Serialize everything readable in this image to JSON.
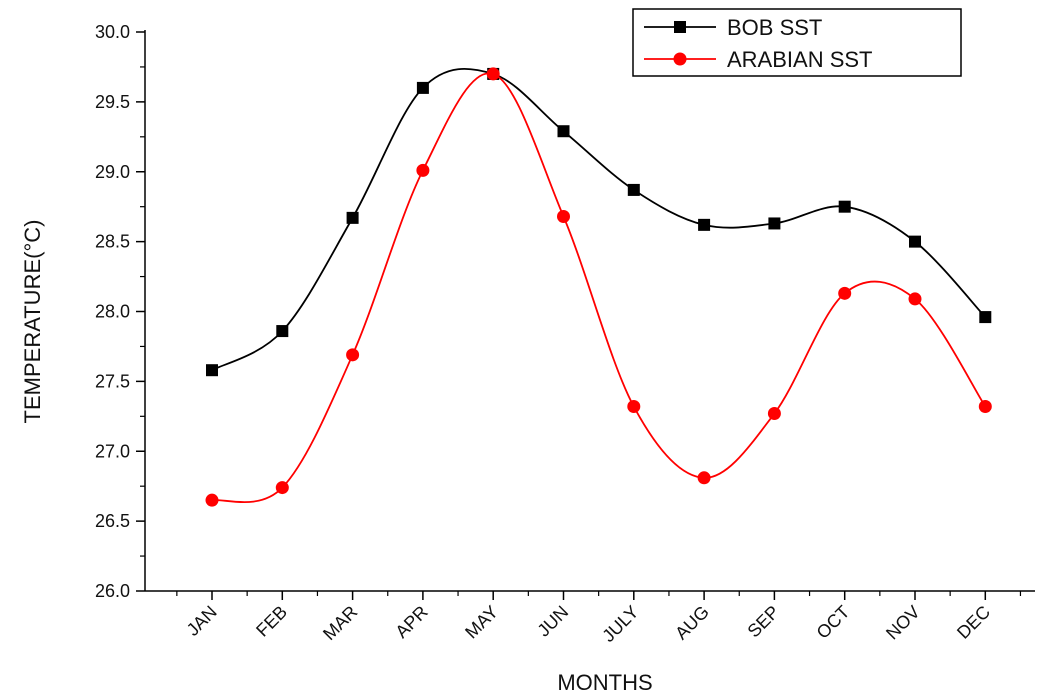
{
  "chart_data": {
    "type": "line",
    "title": "",
    "xlabel": "MONTHS",
    "ylabel": "TEMPERATURE(°C)",
    "ylim": [
      26.0,
      30.0
    ],
    "yticks": [
      "26.0",
      "26.5",
      "27.0",
      "27.5",
      "28.0",
      "28.5",
      "29.0",
      "29.5",
      "30.0"
    ],
    "categories": [
      "JAN",
      "FEB",
      "MAR",
      "APR",
      "MAY",
      "JUN",
      "JULY",
      "AUG",
      "SEP",
      "OCT",
      "NOV",
      "DEC"
    ],
    "series": [
      {
        "name": "BOB SST",
        "color": "#000000",
        "marker": "square",
        "values": [
          27.58,
          27.86,
          28.67,
          29.6,
          29.7,
          29.29,
          28.87,
          28.62,
          28.63,
          28.75,
          28.5,
          27.96
        ]
      },
      {
        "name": "ARABIAN SST",
        "color": "#ff0000",
        "marker": "circle",
        "values": [
          26.65,
          26.74,
          27.69,
          29.01,
          29.7,
          28.68,
          27.32,
          26.81,
          27.27,
          28.13,
          28.09,
          27.32
        ]
      }
    ],
    "legend_position": "top-right",
    "grid": false
  }
}
